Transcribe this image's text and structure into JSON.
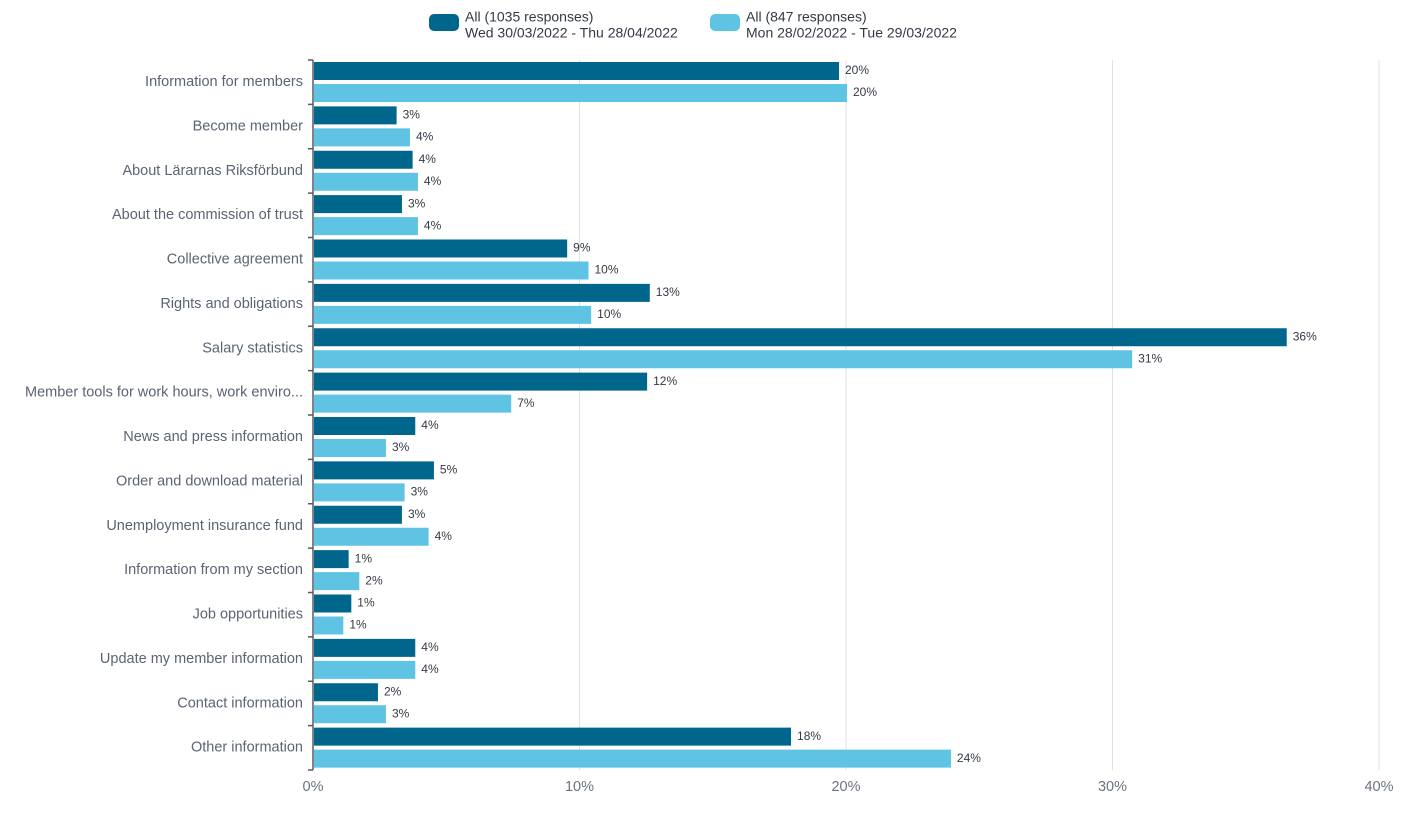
{
  "chart_data": {
    "type": "bar",
    "orientation": "horizontal",
    "categories": [
      "Information for members",
      "Become member",
      "About Lärarnas Riksförbund",
      "About the commission of trust",
      "Collective agreement",
      "Rights and obligations",
      "Salary statistics",
      "Member tools for work hours, work enviro...",
      "News and press information",
      "Order and download material",
      "Unemployment insurance fund",
      "Information from my section",
      "Job opportunities",
      "Update my member information",
      "Contact information",
      "Other information"
    ],
    "series": [
      {
        "name": "All (1035 responses)",
        "subtitle": "Wed 30/03/2022 - Thu 28/04/2022",
        "color": "#01668b",
        "values": [
          19.7,
          3.1,
          3.7,
          3.3,
          9.5,
          12.6,
          36.5,
          12.5,
          3.8,
          4.5,
          3.3,
          1.3,
          1.4,
          3.8,
          2.4,
          17.9
        ],
        "labels": [
          "20%",
          "3%",
          "4%",
          "3%",
          "9%",
          "13%",
          "36%",
          "12%",
          "4%",
          "5%",
          "3%",
          "1%",
          "1%",
          "4%",
          "2%",
          "18%"
        ]
      },
      {
        "name": "All (847 responses)",
        "subtitle": "Mon 28/02/2022 - Tue 29/03/2022",
        "color": "#5fc3e4",
        "values": [
          20.0,
          3.6,
          3.9,
          3.9,
          10.3,
          10.4,
          30.7,
          7.4,
          2.7,
          3.4,
          4.3,
          1.7,
          1.1,
          3.8,
          2.7,
          23.9
        ],
        "labels": [
          "20%",
          "4%",
          "4%",
          "4%",
          "10%",
          "10%",
          "31%",
          "7%",
          "3%",
          "3%",
          "4%",
          "2%",
          "1%",
          "4%",
          "3%",
          "24%"
        ]
      }
    ],
    "xlim": [
      0,
      40
    ],
    "xticks": [
      0,
      10,
      20,
      30,
      40
    ],
    "xtick_labels": [
      "0%",
      "10%",
      "20%",
      "30%",
      "40%"
    ],
    "grid": true,
    "legend_position": "top-center",
    "title": "",
    "xlabel": "",
    "ylabel": ""
  }
}
